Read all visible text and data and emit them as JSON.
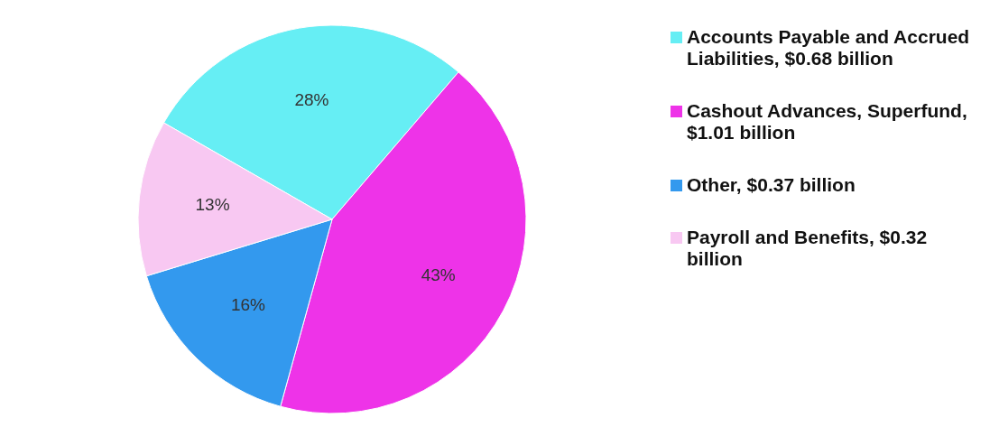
{
  "chart_data": {
    "type": "pie",
    "categories": [
      "Accounts Payable and Accrued Liabilities, $0.68 billion",
      "Cashout Advances, Superfund, $1.01 billion",
      "Other, $0.37 billion",
      "Payroll and Benefits, $0.32 billion"
    ],
    "values": [
      28,
      43,
      16,
      13
    ],
    "colors": [
      "#66eef4",
      "#ee33e8",
      "#3399ee",
      "#f8c8f2"
    ],
    "value_labels": [
      "28%",
      "43%",
      "16%",
      "13%"
    ],
    "legend": "right"
  }
}
